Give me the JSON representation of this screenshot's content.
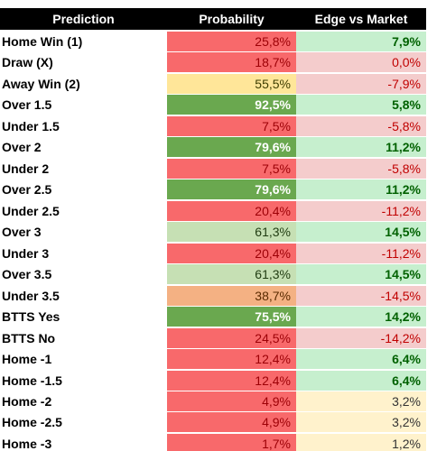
{
  "table": {
    "header": [
      "Prediction",
      "Probability",
      "Edge vs Market"
    ],
    "rows": [
      {
        "cells": [
          "Home Win (1)",
          "25,8%",
          "7,9%"
        ],
        "prob_fill": "#f8696b",
        "edge_fill": "#c6efce"
      },
      {
        "cells": [
          "Draw (X)",
          "18,7%",
          "0,0%"
        ],
        "prob_fill": "#f8696b",
        "edge_fill": "#f4cccc"
      },
      {
        "cells": [
          "Away Win (2)",
          "55,5%",
          "-7,9%"
        ],
        "prob_fill": "#ffe699",
        "edge_fill": "#f4cccc"
      },
      {
        "cells": [
          "Over 1.5",
          "92,5%",
          "5,8%"
        ],
        "prob_fill": "#6aa84f",
        "edge_fill": "#c6efce"
      },
      {
        "cells": [
          "Under 1.5",
          "7,5%",
          "-5,8%"
        ],
        "prob_fill": "#f8696b",
        "edge_fill": "#f4cccc"
      },
      {
        "cells": [
          "Over 2",
          "79,6%",
          "11,2%"
        ],
        "prob_fill": "#6aa84f",
        "edge_fill": "#c6efce"
      },
      {
        "cells": [
          "Under 2",
          "7,5%",
          "-5,8%"
        ],
        "prob_fill": "#f8696b",
        "edge_fill": "#f4cccc"
      },
      {
        "cells": [
          "Over 2.5",
          "79,6%",
          "11,2%"
        ],
        "prob_fill": "#6aa84f",
        "edge_fill": "#c6efce"
      },
      {
        "cells": [
          "Under 2.5",
          "20,4%",
          "-11,2%"
        ],
        "prob_fill": "#f8696b",
        "edge_fill": "#f4cccc"
      },
      {
        "cells": [
          "Over 3",
          "61,3%",
          "14,5%"
        ],
        "prob_fill": "#c6e0b4",
        "edge_fill": "#c6efce"
      },
      {
        "cells": [
          "Under 3",
          "20,4%",
          "-11,2%"
        ],
        "prob_fill": "#f8696b",
        "edge_fill": "#f4cccc"
      },
      {
        "cells": [
          "Over 3.5",
          "61,3%",
          "14,5%"
        ],
        "prob_fill": "#c6e0b4",
        "edge_fill": "#c6efce"
      },
      {
        "cells": [
          "Under 3.5",
          "38,7%",
          "-14,5%"
        ],
        "prob_fill": "#f4b183",
        "edge_fill": "#f4cccc"
      },
      {
        "cells": [
          "BTTS Yes",
          "75,5%",
          "14,2%"
        ],
        "prob_fill": "#6aa84f",
        "edge_fill": "#c6efce"
      },
      {
        "cells": [
          "BTTS No",
          "24,5%",
          "-14,2%"
        ],
        "prob_fill": "#f8696b",
        "edge_fill": "#f4cccc"
      },
      {
        "cells": [
          "Home -1",
          "12,4%",
          "6,4%"
        ],
        "prob_fill": "#f8696b",
        "edge_fill": "#c6efce"
      },
      {
        "cells": [
          "Home -1.5",
          "12,4%",
          "6,4%"
        ],
        "prob_fill": "#f8696b",
        "edge_fill": "#c6efce"
      },
      {
        "cells": [
          "Home -2",
          "4,9%",
          "3,2%"
        ],
        "prob_fill": "#f8696b",
        "edge_fill": "#fff2cc"
      },
      {
        "cells": [
          "Home -2.5",
          "4,9%",
          "3,2%"
        ],
        "prob_fill": "#f8696b",
        "edge_fill": "#fff2cc"
      },
      {
        "cells": [
          "Home -3",
          "1,7%",
          "1,2%"
        ],
        "prob_fill": "#f8696b",
        "edge_fill": "#fff2cc"
      }
    ]
  }
}
